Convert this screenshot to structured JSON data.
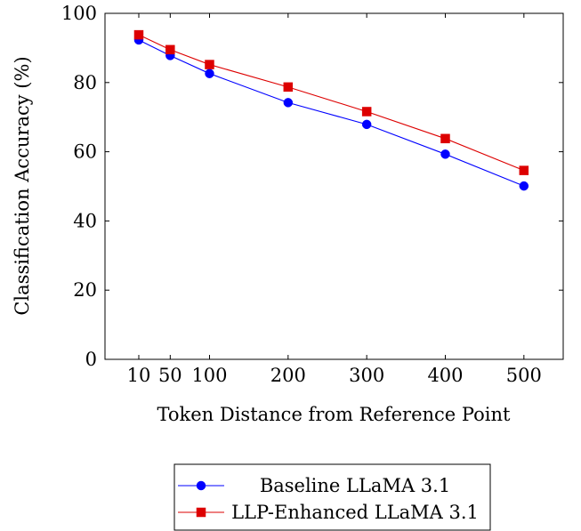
{
  "chart_data": {
    "type": "line",
    "title": "",
    "xlabel": "Token Distance from Reference Point",
    "ylabel": "Classification Accuracy (%)",
    "x": [
      10,
      50,
      100,
      200,
      300,
      400,
      500
    ],
    "xticks": [
      "10",
      "50",
      "100",
      "200",
      "300",
      "400",
      "500"
    ],
    "yticks": [
      "0",
      "20",
      "40",
      "60",
      "80",
      "100"
    ],
    "xlim": [
      -33,
      550
    ],
    "ylim": [
      0,
      100
    ],
    "grid": false,
    "legend_position": "bottom-center",
    "series": [
      {
        "name": "Baseline LLaMA 3.1",
        "values": [
          92.3,
          87.8,
          82.6,
          74.2,
          67.9,
          59.3,
          50.1
        ],
        "color": "#0000ff",
        "marker": "circle"
      },
      {
        "name": "LLP-Enhanced LLaMA 3.1",
        "values": [
          93.8,
          89.5,
          85.2,
          78.7,
          71.6,
          63.8,
          54.6
        ],
        "color": "#dd0000",
        "marker": "square"
      }
    ]
  }
}
